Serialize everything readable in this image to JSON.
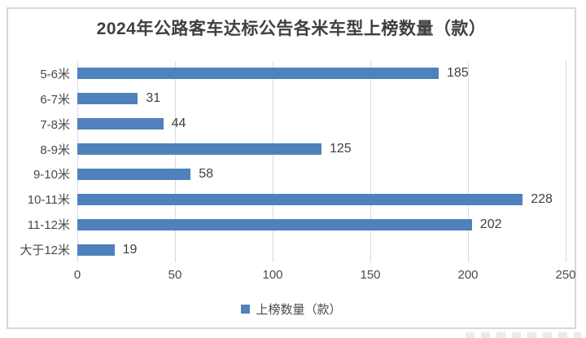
{
  "title": "2024年公路客车达标公告各米车型上榜数量（款）",
  "legend": {
    "label": "上榜数量（款）"
  },
  "colors": {
    "bar": "#4f81bd",
    "gridline": "#d9d9d9",
    "frame_border": "#d9d9d9",
    "title_text": "#3f3f3f",
    "axis_text": "#4a4a4a",
    "value_text": "#3f3f3f"
  },
  "chart_data": {
    "type": "bar",
    "orientation": "horizontal",
    "title": "2024年公路客车达标公告各米车型上榜数量（款）",
    "categories": [
      "5-6米",
      "6-7米",
      "7-8米",
      "8-9米",
      "9-10米",
      "10-11米",
      "11-12米",
      "大于12米"
    ],
    "values": [
      185,
      31,
      44,
      125,
      58,
      228,
      202,
      19
    ],
    "xlabel": "",
    "ylabel": "",
    "xlim": [
      0,
      250
    ],
    "x_ticks": [
      0,
      50,
      100,
      150,
      200,
      250
    ],
    "grid": true,
    "legend_entries": [
      "上榜数量（款）"
    ],
    "legend_position": "bottom"
  }
}
